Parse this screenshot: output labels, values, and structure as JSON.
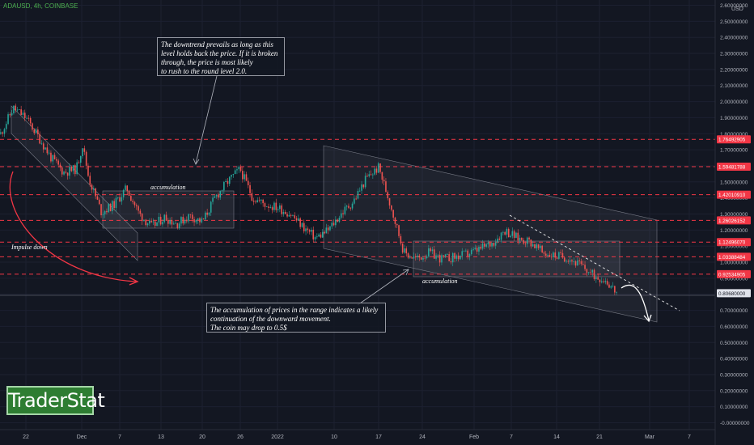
{
  "header": {
    "symbol": "ADAUSD, 4h, COINBASE"
  },
  "currency": "USD",
  "logo": {
    "text": "TraderStat"
  },
  "annotations": {
    "top_note": [
      "The downtrend prevails as long as this",
      "level holds back the price. If it is broken",
      "through, the price is most likely",
      "to rush to the round level 2.0."
    ],
    "bottom_note": [
      "The accumulation of prices in the range indicates a likely",
      "continuation of the downward movement.",
      "The coin may drop to 0.5$"
    ],
    "accumulation_1": "accumulation",
    "accumulation_2": "accumulation",
    "impulse": "Impulse down"
  },
  "colors": {
    "background": "#131722",
    "candle_up": "#26a69a",
    "candle_down": "#ef5350",
    "level_line": "#f23645",
    "accent": "#4caf50"
  },
  "chart_data": {
    "type": "line",
    "title": "ADAUSD, 4h, COINBASE",
    "xlabel": "",
    "ylabel": "",
    "x_tick_labels": [
      "22",
      "Dec",
      "7",
      "13",
      "20",
      "26",
      "2022",
      "10",
      "17",
      "24",
      "Feb",
      "7",
      "14",
      "21",
      "Mar",
      "7"
    ],
    "y_tick_labels": [
      "2.60000000",
      "2.50000000",
      "2.40000000",
      "2.30000000",
      "2.20000000",
      "2.10000000",
      "2.00000000",
      "1.90000000",
      "1.80000000",
      "1.70000000",
      "1.60000000",
      "1.50000000",
      "1.40000000",
      "1.30000000",
      "1.20000000",
      "1.10000000",
      "1.00000000",
      "0.90000000",
      "0.80000000",
      "0.70000000",
      "0.60000000",
      "0.50000000",
      "0.40000000",
      "0.30000000",
      "0.20000000",
      "0.10000000",
      "-0.00000000"
    ],
    "ylim": [
      -0.02,
      2.63
    ],
    "price_levels": [
      "1.76492905",
      "1.59481788",
      "1.42010910",
      "1.26026152",
      "1.12496070",
      "1.03388484",
      "0.92534905"
    ],
    "current_price": "0.80680000",
    "series": [
      {
        "x": [
          "2021-11-18",
          "2021-11-20",
          "2021-11-22",
          "2021-11-24",
          "2021-11-26",
          "2021-11-28",
          "2021-11-30",
          "2021-12-01",
          "2021-12-02",
          "2021-12-04",
          "2021-12-06",
          "2021-12-08",
          "2021-12-10",
          "2021-12-12",
          "2021-12-14",
          "2021-12-16",
          "2021-12-18",
          "2021-12-20",
          "2021-12-22",
          "2021-12-24",
          "2021-12-26",
          "2021-12-28",
          "2021-12-30",
          "2022-01-01",
          "2022-01-03",
          "2022-01-05",
          "2022-01-07",
          "2022-01-09",
          "2022-01-11",
          "2022-01-13",
          "2022-01-15",
          "2022-01-17",
          "2022-01-19",
          "2022-01-21",
          "2022-01-23",
          "2022-01-25",
          "2022-01-27",
          "2022-01-29",
          "2022-01-31",
          "2022-02-02",
          "2022-02-04",
          "2022-02-06",
          "2022-02-08",
          "2022-02-10",
          "2022-02-12",
          "2022-02-14",
          "2022-02-16",
          "2022-02-18",
          "2022-02-20",
          "2022-02-22",
          "2022-02-24"
        ],
        "y": [
          1.8,
          1.96,
          1.9,
          1.78,
          1.65,
          1.56,
          1.58,
          1.73,
          1.52,
          1.31,
          1.36,
          1.46,
          1.3,
          1.22,
          1.28,
          1.24,
          1.29,
          1.25,
          1.4,
          1.5,
          1.58,
          1.4,
          1.36,
          1.34,
          1.3,
          1.22,
          1.15,
          1.2,
          1.3,
          1.38,
          1.52,
          1.59,
          1.34,
          1.06,
          1.02,
          1.06,
          1.02,
          1.03,
          1.05,
          1.08,
          1.12,
          1.2,
          1.15,
          1.13,
          1.06,
          1.04,
          1.03,
          0.98,
          0.92,
          0.89,
          0.8
        ]
      }
    ],
    "grid": true,
    "legend": "none"
  }
}
